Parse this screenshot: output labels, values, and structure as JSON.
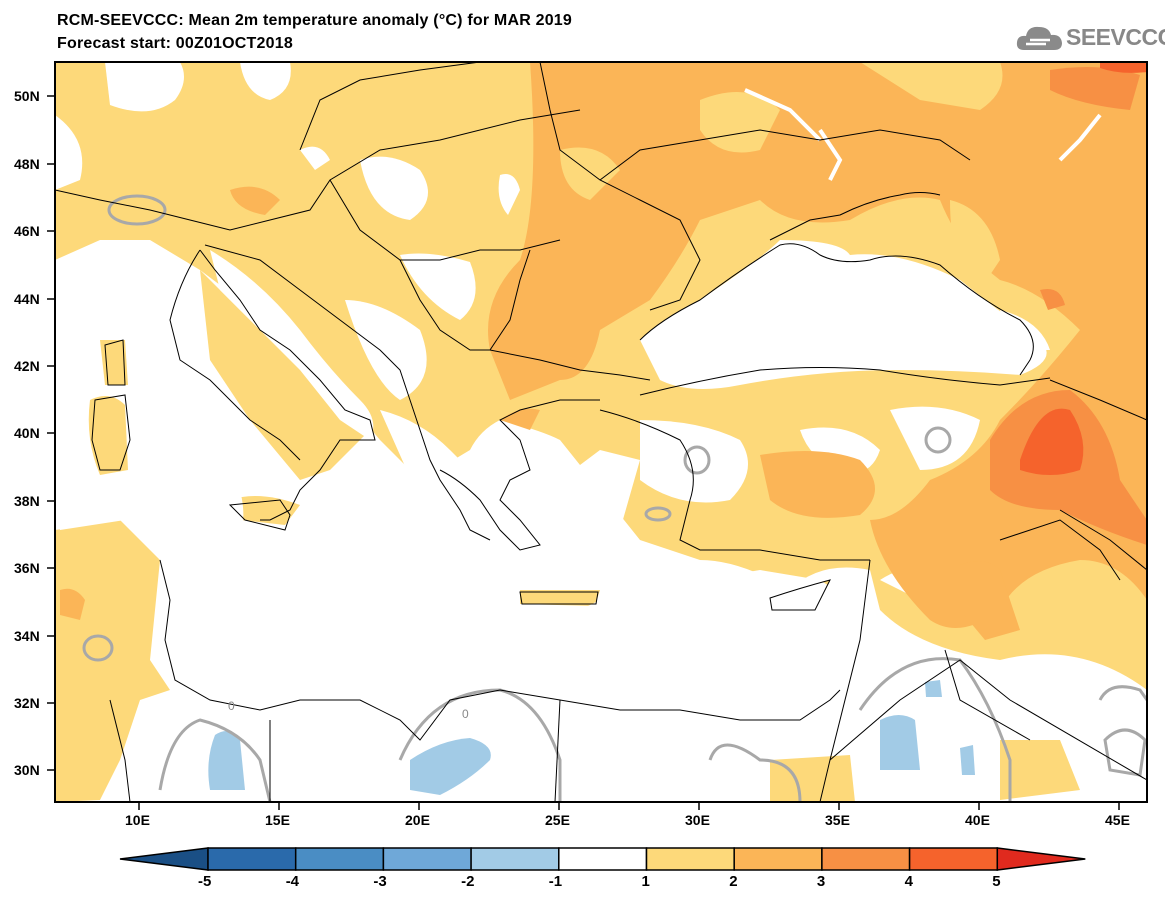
{
  "title_line1": "RCM-SEEVCCC: Mean 2m temperature anomaly (°C) for MAR 2019",
  "title_line2": "Forecast start: 00Z01OCT2018",
  "logo": {
    "text": "SEEVCCC",
    "icon": "cloud-logo-icon"
  },
  "map": {
    "type": "contour-filled-map",
    "variable": "Mean 2m temperature anomaly",
    "unit": "°C",
    "lon_range": [
      7,
      46
    ],
    "lat_range": [
      29,
      51
    ],
    "lat_ticks": [
      "50N",
      "48N",
      "46N",
      "44N",
      "42N",
      "40N",
      "38N",
      "36N",
      "34N",
      "32N",
      "30N"
    ],
    "lon_ticks": [
      "10E",
      "15E",
      "20E",
      "25E",
      "30E",
      "35E",
      "40E",
      "45E"
    ],
    "contour_label": "0"
  },
  "colorbar": {
    "labels": [
      "-5",
      "-4",
      "-3",
      "-2",
      "-1",
      "1",
      "2",
      "3",
      "4",
      "5"
    ],
    "colors": [
      "#1a4f85",
      "#2a6aab",
      "#4a8dc4",
      "#6fa8d8",
      "#a2cbe6",
      "#ffffff",
      "#fdd97a",
      "#fbb557",
      "#f79044",
      "#f5632c",
      "#e02a1e"
    ]
  }
}
